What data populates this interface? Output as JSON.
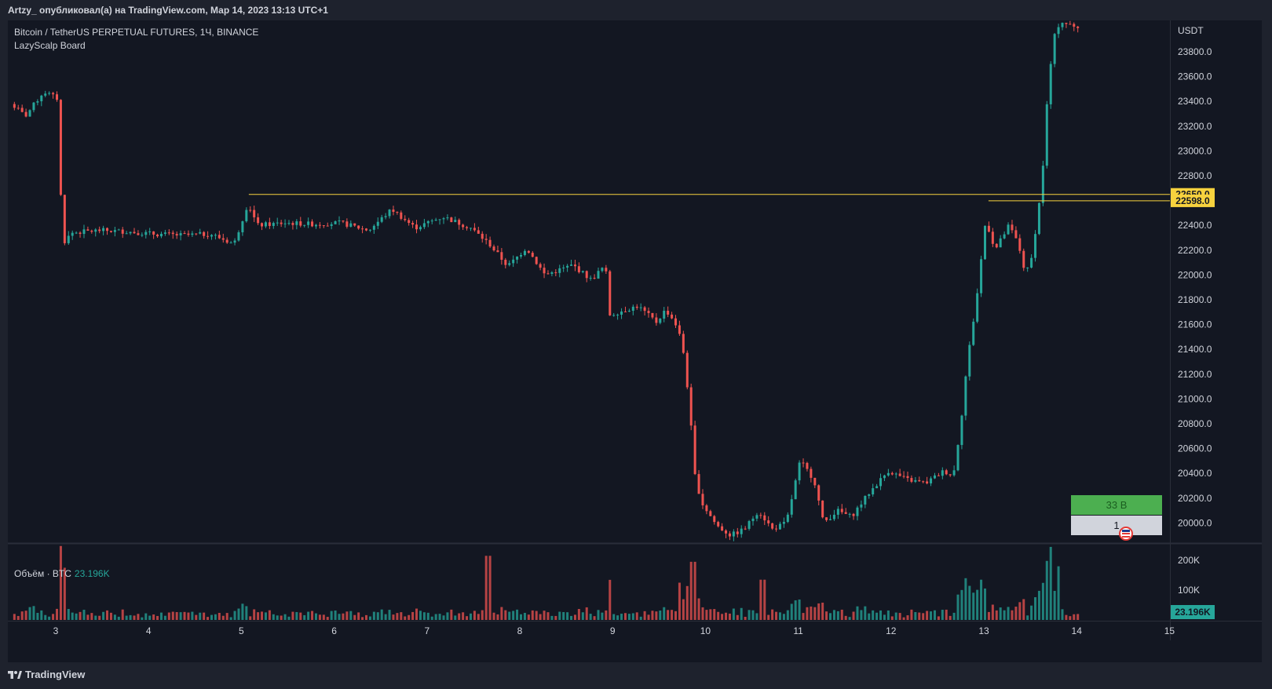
{
  "header": {
    "publisher": "Artzy_ опубликовал(а) на TradingView.com, Мар 14, 2023 13:13 UTC+1"
  },
  "chart": {
    "symbol_title": "Bitcoin / TetherUS PERPETUAL FUTURES, 1Ч, BINANCE",
    "indicator_title": "LazyScalp Board",
    "currency": "USDT",
    "volume_label": "Объём · BTC",
    "volume_value": "23.196K",
    "board": {
      "top_text": "33 B",
      "bottom_text": "1",
      "top_color": "#4caf50",
      "bottom_color": "#d1d4dc",
      "icon": "flag-icon"
    },
    "colors": {
      "up": "#26a69a",
      "down": "#ef5350",
      "level": "#f7d23e",
      "background": "#131722"
    }
  },
  "chart_data": {
    "type": "candlestick",
    "title": "Bitcoin / TetherUS PERPETUAL FUTURES, 1Ч, BINANCE",
    "y_axis": {
      "ticks": [
        "20000.0",
        "20200.0",
        "20400.0",
        "20600.0",
        "20800.0",
        "21000.0",
        "21200.0",
        "21400.0",
        "21600.0",
        "21800.0",
        "22000.0",
        "22200.0",
        "22400.0",
        "22600.0",
        "22800.0",
        "23000.0",
        "23200.0",
        "23400.0",
        "23600.0",
        "23800.0"
      ],
      "range": [
        19830,
        24080
      ]
    },
    "x_axis": {
      "ticks": [
        "3",
        "4",
        "5",
        "6",
        "7",
        "8",
        "9",
        "10",
        "11",
        "12",
        "13",
        "14",
        "15"
      ]
    },
    "levels": [
      {
        "price": 22650.0,
        "label": "22650.0"
      },
      {
        "price": 22598.0,
        "label": "22598.0"
      }
    ],
    "volume_axis": {
      "ticks": [
        "100K",
        "200K"
      ],
      "current": "23.196K"
    },
    "price_path": [
      {
        "day": 2.5,
        "price": 23400
      },
      {
        "day": 2.6,
        "price": 23350
      },
      {
        "day": 2.7,
        "price": 23280
      },
      {
        "day": 2.8,
        "price": 23380
      },
      {
        "day": 2.9,
        "price": 23480
      },
      {
        "day": 3.05,
        "price": 23420
      },
      {
        "day": 3.1,
        "price": 22250
      },
      {
        "day": 3.2,
        "price": 22340
      },
      {
        "day": 3.5,
        "price": 22360
      },
      {
        "day": 3.8,
        "price": 22350
      },
      {
        "day": 4.1,
        "price": 22330
      },
      {
        "day": 4.4,
        "price": 22320
      },
      {
        "day": 4.7,
        "price": 22330
      },
      {
        "day": 4.95,
        "price": 22250
      },
      {
        "day": 5.1,
        "price": 22580
      },
      {
        "day": 5.2,
        "price": 22400
      },
      {
        "day": 5.5,
        "price": 22420
      },
      {
        "day": 5.8,
        "price": 22410
      },
      {
        "day": 6.1,
        "price": 22420
      },
      {
        "day": 6.4,
        "price": 22360
      },
      {
        "day": 6.65,
        "price": 22530
      },
      {
        "day": 6.9,
        "price": 22380
      },
      {
        "day": 7.2,
        "price": 22470
      },
      {
        "day": 7.5,
        "price": 22380
      },
      {
        "day": 7.7,
        "price": 22250
      },
      {
        "day": 7.9,
        "price": 22070
      },
      {
        "day": 8.1,
        "price": 22220
      },
      {
        "day": 8.3,
        "price": 22000
      },
      {
        "day": 8.6,
        "price": 22080
      },
      {
        "day": 8.8,
        "price": 21960
      },
      {
        "day": 8.95,
        "price": 22080
      },
      {
        "day": 9.0,
        "price": 21680
      },
      {
        "day": 9.3,
        "price": 21750
      },
      {
        "day": 9.5,
        "price": 21620
      },
      {
        "day": 9.6,
        "price": 21720
      },
      {
        "day": 9.7,
        "price": 21620
      },
      {
        "day": 9.78,
        "price": 21450
      },
      {
        "day": 9.85,
        "price": 21000
      },
      {
        "day": 9.92,
        "price": 20350
      },
      {
        "day": 10.0,
        "price": 20150
      },
      {
        "day": 10.15,
        "price": 19980
      },
      {
        "day": 10.3,
        "price": 19900
      },
      {
        "day": 10.45,
        "price": 19950
      },
      {
        "day": 10.6,
        "price": 20100
      },
      {
        "day": 10.75,
        "price": 19950
      },
      {
        "day": 10.9,
        "price": 20000
      },
      {
        "day": 11.05,
        "price": 20500
      },
      {
        "day": 11.2,
        "price": 20350
      },
      {
        "day": 11.3,
        "price": 20000
      },
      {
        "day": 11.45,
        "price": 20100
      },
      {
        "day": 11.6,
        "price": 20050
      },
      {
        "day": 11.8,
        "price": 20250
      },
      {
        "day": 12.0,
        "price": 20420
      },
      {
        "day": 12.2,
        "price": 20350
      },
      {
        "day": 12.4,
        "price": 20320
      },
      {
        "day": 12.6,
        "price": 20420
      },
      {
        "day": 12.7,
        "price": 20380
      },
      {
        "day": 12.78,
        "price": 20800
      },
      {
        "day": 12.85,
        "price": 21300
      },
      {
        "day": 12.95,
        "price": 21800
      },
      {
        "day": 13.05,
        "price": 22450
      },
      {
        "day": 13.15,
        "price": 22200
      },
      {
        "day": 13.3,
        "price": 22400
      },
      {
        "day": 13.4,
        "price": 22250
      },
      {
        "day": 13.48,
        "price": 22000
      },
      {
        "day": 13.55,
        "price": 22150
      },
      {
        "day": 13.6,
        "price": 22450
      },
      {
        "day": 13.65,
        "price": 22700
      },
      {
        "day": 13.72,
        "price": 23500
      },
      {
        "day": 13.78,
        "price": 23900
      },
      {
        "day": 13.85,
        "price": 24050
      },
      {
        "day": 14.0,
        "price": 24000
      }
    ],
    "volume_path": [
      {
        "day": 3.07,
        "value": 175
      },
      {
        "day": 7.65,
        "value": 215
      },
      {
        "day": 9.7,
        "value": 125
      },
      {
        "day": 9.85,
        "value": 195
      },
      {
        "day": 10.6,
        "value": 135
      },
      {
        "day": 12.8,
        "value": 140
      },
      {
        "day": 12.95,
        "value": 135
      },
      {
        "day": 13.7,
        "value": 245
      },
      {
        "day": 13.78,
        "value": 180
      }
    ]
  }
}
